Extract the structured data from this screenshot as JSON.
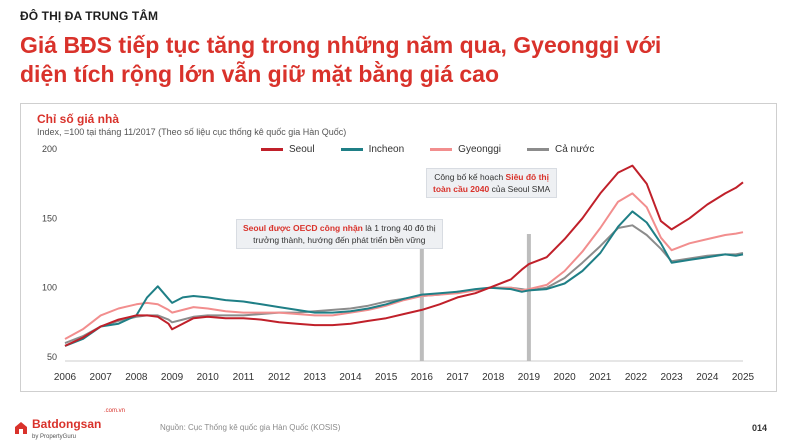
{
  "section_label": "ĐÔ THỊ ĐA TRUNG TÂM",
  "headline": {
    "line1": "Giá BĐS tiếp tục tăng trong những năm qua, Gyeonggi với",
    "line2": "diện tích rộng lớn vẫn giữ mặt bằng giá cao"
  },
  "annotations": {
    "a1_highlight": "Seoul được OECD công nhận",
    "a1_text": " là 1 trong 40 đô thị",
    "a1_line2": "trưởng thành, hướng đến phát triển bền vững",
    "a2_text": "Công bố kế hoạch ",
    "a2_highlight1": "Siêu đô thị",
    "a2_highlight2": "toàn cầu 2040",
    "a2_line2_rest": " của Seoul SMA"
  },
  "footer": {
    "brand": "Batdongsan",
    "brand_domain": ".com.vn",
    "brand_sub": "by PropertyGuru",
    "source": "Nguồn: Cục Thống kê quốc gia Hàn Quốc (KOSIS)",
    "page_number": "014"
  },
  "colors": {
    "accent": "#d9322b",
    "seoul": "#c0202a",
    "incheon": "#1f7f86",
    "gyeonggi": "#f28e8e",
    "national": "#8c8c8c",
    "marker": "#bdbdbd"
  },
  "chart_data": {
    "type": "line",
    "title": "Chỉ số giá nhà",
    "subtitle": "Index, =100 tại tháng 11/2017 (Theo số liệu cục thống kê quốc gia Hàn Quốc)",
    "xlabel": "",
    "ylabel": "",
    "xlim": [
      2006,
      2025
    ],
    "ylim": [
      50,
      200
    ],
    "x_ticks": [
      "2006",
      "2007",
      "2008",
      "2009",
      "2010",
      "2011",
      "2012",
      "2013",
      "2014",
      "2015",
      "2016",
      "2017",
      "2018",
      "2019",
      "2020",
      "2021",
      "2022",
      "2023",
      "2024",
      "2025"
    ],
    "y_ticks": [
      "50",
      "100",
      "150",
      "200"
    ],
    "legend_position": "top",
    "markers": [
      2016.0,
      2019.0
    ],
    "x": [
      2006.0,
      2006.5,
      2007.0,
      2007.5,
      2008.0,
      2008.3,
      2008.6,
      2008.9,
      2009.0,
      2009.3,
      2009.6,
      2010.0,
      2010.5,
      2011.0,
      2011.5,
      2012.0,
      2012.5,
      2013.0,
      2013.5,
      2014.0,
      2014.5,
      2015.0,
      2015.5,
      2016.0,
      2016.5,
      2017.0,
      2017.5,
      2017.9,
      2018.5,
      2018.8,
      2019.0,
      2019.5,
      2020.0,
      2020.5,
      2021.0,
      2021.5,
      2021.9,
      2022.3,
      2022.7,
      2023.0,
      2023.5,
      2024.0,
      2024.5,
      2024.8,
      2025.0
    ],
    "series": [
      {
        "name": "Seoul",
        "values": [
          58,
          64,
          72,
          77,
          80,
          80,
          79,
          74,
          70,
          74,
          78,
          79,
          78,
          78,
          77,
          75,
          74,
          73,
          73,
          74,
          76,
          78,
          81,
          84,
          88,
          93,
          96,
          100,
          106,
          113,
          117,
          122,
          135,
          150,
          168,
          183,
          188,
          175,
          148,
          142,
          150,
          160,
          168,
          172,
          176
        ]
      },
      {
        "name": "Incheon",
        "values": [
          58,
          63,
          72,
          74,
          80,
          93,
          101,
          92,
          89,
          93,
          94,
          93,
          91,
          90,
          88,
          86,
          84,
          82,
          82,
          83,
          85,
          88,
          92,
          95,
          96,
          97,
          99,
          100,
          99,
          97,
          98,
          99,
          103,
          112,
          125,
          144,
          155,
          147,
          132,
          118,
          120,
          122,
          124,
          123,
          124
        ]
      },
      {
        "name": "Gyeonggi",
        "values": [
          63,
          70,
          80,
          85,
          88,
          89,
          88,
          84,
          82,
          84,
          86,
          85,
          83,
          82,
          82,
          82,
          81,
          80,
          80,
          82,
          84,
          87,
          91,
          94,
          95,
          96,
          98,
          100,
          100,
          98,
          99,
          102,
          112,
          126,
          143,
          162,
          168,
          158,
          136,
          127,
          132,
          135,
          138,
          139,
          140
        ]
      },
      {
        "name": "Cả nước",
        "values": [
          60,
          65,
          72,
          76,
          79,
          80,
          80,
          77,
          75,
          77,
          79,
          80,
          80,
          80,
          81,
          82,
          82,
          83,
          84,
          85,
          87,
          90,
          92,
          94,
          95,
          97,
          98,
          100,
          100,
          99,
          98,
          100,
          107,
          118,
          130,
          143,
          145,
          138,
          128,
          119,
          121,
          123,
          124,
          124,
          125
        ]
      }
    ]
  }
}
